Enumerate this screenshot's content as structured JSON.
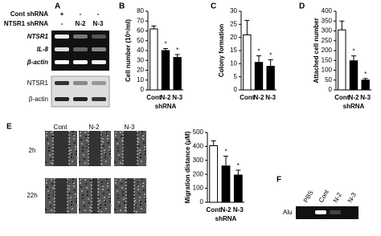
{
  "panel_labels": [
    "A",
    "B",
    "C",
    "D",
    "E",
    "F"
  ],
  "panel_a": {
    "rows": [
      {
        "label": "Cont shRNA",
        "lanes": [
          "+",
          "-",
          "-"
        ]
      },
      {
        "label": "NTSR1 shRNA",
        "lanes": [
          "-",
          "N-2",
          "N-3"
        ]
      }
    ],
    "rt_pcr": [
      "NTSR1",
      "IL-8",
      "β-actin"
    ],
    "western": [
      "NTSR1",
      "β-actin"
    ]
  },
  "panel_e": {
    "columns": [
      "Cont",
      "N-2",
      "N-3"
    ],
    "rows": [
      "2h",
      "22h"
    ]
  },
  "panel_f": {
    "lanes": [
      "PBS",
      "Cont",
      "N-2",
      "N-3"
    ],
    "row": "Alu"
  },
  "chart_data": [
    {
      "type": "bar",
      "ylabel": "Cell number (10⁵/ml)",
      "xlabel": "shRNA",
      "categories": [
        "Cont",
        "N-2",
        "N-3"
      ],
      "values": [
        62,
        40,
        33
      ],
      "errors": [
        3,
        2,
        3
      ],
      "markers": [
        null,
        "*",
        "*"
      ],
      "colors": [
        "#ffffff",
        "#000000",
        "#000000"
      ],
      "ylim": [
        0,
        80
      ],
      "yticks": [
        0,
        10,
        20,
        30,
        40,
        50,
        60,
        70,
        80
      ]
    },
    {
      "type": "bar",
      "ylabel": "Colony formation",
      "categories": [
        "Cont",
        "N-2",
        "N-3"
      ],
      "values": [
        21,
        10.5,
        9
      ],
      "errors": [
        5.5,
        2.5,
        2.5
      ],
      "markers": [
        null,
        "*",
        "*"
      ],
      "colors": [
        "#ffffff",
        "#000000",
        "#000000"
      ],
      "ylim": [
        0,
        30
      ],
      "yticks": [
        0,
        5,
        10,
        15,
        20,
        25,
        30
      ]
    },
    {
      "type": "bar",
      "ylabel": "Attached cell number",
      "xlabel": "shRNA",
      "categories": [
        "Cont",
        "N-2",
        "N-3"
      ],
      "values": [
        305,
        148,
        50
      ],
      "errors": [
        45,
        25,
        8
      ],
      "markers": [
        null,
        "*",
        "*"
      ],
      "colors": [
        "#ffffff",
        "#000000",
        "#000000"
      ],
      "ylim": [
        0,
        400
      ],
      "yticks": [
        0,
        50,
        100,
        150,
        200,
        250,
        300,
        350,
        400
      ]
    },
    {
      "type": "bar",
      "ylabel": "Migration distance (μM)",
      "xlabel": "shRNA",
      "categories": [
        "Cont",
        "N-2",
        "N-3"
      ],
      "values": [
        405,
        260,
        195
      ],
      "errors": [
        35,
        70,
        35
      ],
      "markers": [
        null,
        "*",
        "*"
      ],
      "colors": [
        "#ffffff",
        "#000000",
        "#000000"
      ],
      "ylim": [
        0,
        500
      ],
      "yticks": [
        0,
        100,
        200,
        300,
        400,
        500
      ]
    }
  ]
}
